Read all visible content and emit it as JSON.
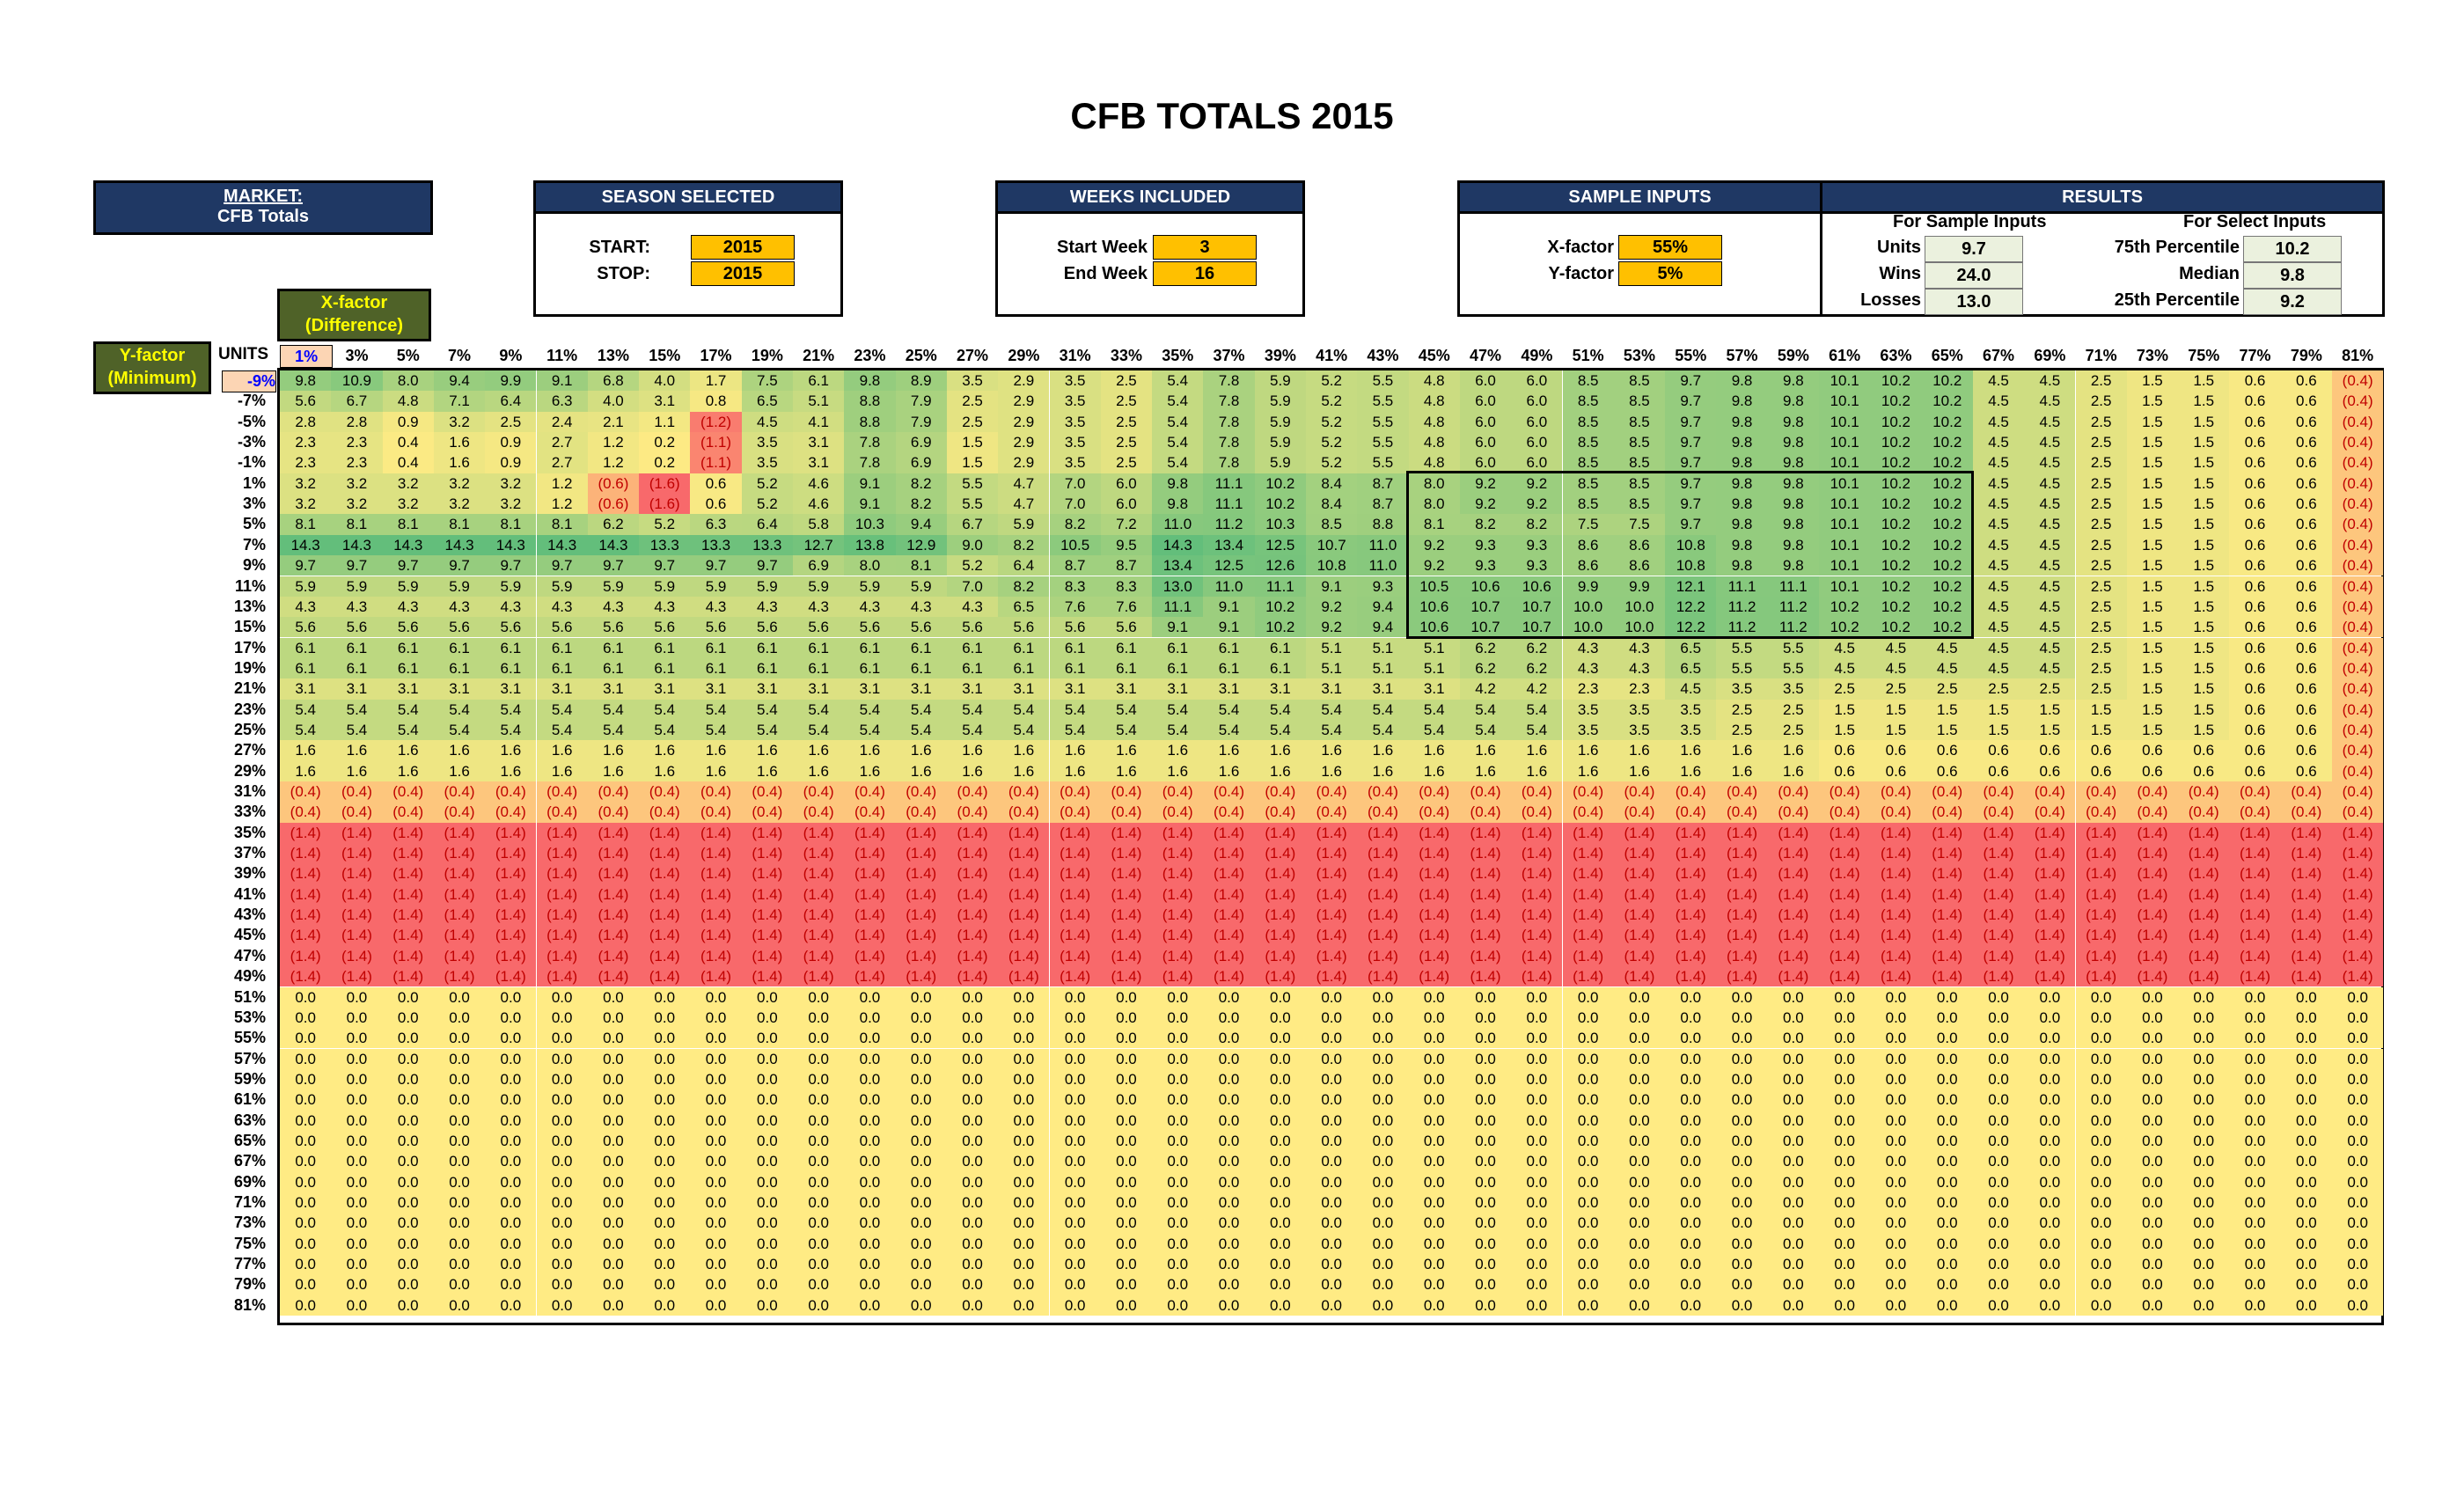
{
  "title": "CFB TOTALS 2015",
  "market": {
    "label": "MARKET:",
    "value": "CFB Totals"
  },
  "season": {
    "header": "SEASON SELECTED",
    "start_label": "START:",
    "start_value": "2015",
    "stop_label": "STOP:",
    "stop_value": "2015"
  },
  "weeks": {
    "header": "WEEKS INCLUDED",
    "start_label": "Start Week",
    "start_value": "3",
    "end_label": "End Week",
    "end_value": "16"
  },
  "sample": {
    "header": "SAMPLE INPUTS",
    "x_label": "X-factor",
    "x_value": "55%",
    "y_label": "Y-factor",
    "y_value": "5%"
  },
  "results": {
    "header": "RESULTS",
    "sample_header": "For Sample Inputs",
    "select_header": "For Select Inputs",
    "units_label": "Units",
    "units_value": "9.7",
    "wins_label": "Wins",
    "wins_value": "24.0",
    "losses_label": "Losses",
    "losses_value": "13.0",
    "p75_label": "75th Percentile",
    "p75_value": "10.2",
    "median_label": "Median",
    "median_value": "9.8",
    "p25_label": "25th Percentile",
    "p25_value": "9.2"
  },
  "xfactor_label": "X-factor",
  "xfactor_sub": "(Difference)",
  "yfactor_label": "Y-factor",
  "yfactor_sub": "(Minimum)",
  "units_label": "UNITS",
  "colors": {
    "navy": "#1f3864",
    "olive": "#4f6228",
    "gold": "#ffc000",
    "red": "#f8696b",
    "green": "#63be7b",
    "yellow": "#ffeb84"
  },
  "table": {
    "columns": [
      "1%",
      "3%",
      "5%",
      "7%",
      "9%",
      "11%",
      "13%",
      "15%",
      "17%",
      "19%",
      "21%",
      "23%",
      "25%",
      "27%",
      "29%",
      "31%",
      "33%",
      "35%",
      "37%",
      "39%",
      "41%",
      "43%",
      "45%",
      "47%",
      "49%",
      "51%",
      "53%",
      "55%",
      "57%",
      "59%",
      "61%",
      "63%",
      "65%",
      "67%",
      "69%",
      "71%",
      "73%",
      "75%",
      "77%",
      "79%",
      "81%"
    ],
    "rows": [
      {
        "label": "-9%",
        "values": [
          "9.8",
          "10.9",
          "8.0",
          "9.4",
          "9.9",
          "9.1",
          "6.8",
          "4.0",
          "1.7",
          "7.5",
          "6.1",
          "9.8",
          "8.9",
          "3.5",
          "2.9",
          "3.5",
          "2.5",
          "5.4",
          "7.8",
          "5.9",
          "5.2",
          "5.5",
          "4.8",
          "6.0",
          "6.0",
          "8.5",
          "8.5",
          "9.7",
          "9.8",
          "9.8",
          "10.1",
          "10.2",
          "10.2",
          "4.5",
          "4.5",
          "2.5",
          "1.5",
          "1.5",
          "0.6",
          "0.6",
          "(0.4)"
        ]
      },
      {
        "label": "-7%",
        "values": [
          "5.6",
          "6.7",
          "4.8",
          "7.1",
          "6.4",
          "6.3",
          "4.0",
          "3.1",
          "0.8",
          "6.5",
          "5.1",
          "8.8",
          "7.9",
          "2.5",
          "2.9",
          "3.5",
          "2.5",
          "5.4",
          "7.8",
          "5.9",
          "5.2",
          "5.5",
          "4.8",
          "6.0",
          "6.0",
          "8.5",
          "8.5",
          "9.7",
          "9.8",
          "9.8",
          "10.1",
          "10.2",
          "10.2",
          "4.5",
          "4.5",
          "2.5",
          "1.5",
          "1.5",
          "0.6",
          "0.6",
          "(0.4)"
        ]
      },
      {
        "label": "-5%",
        "values": [
          "2.8",
          "2.8",
          "0.9",
          "3.2",
          "2.5",
          "2.4",
          "2.1",
          "1.1",
          "(1.2)",
          "4.5",
          "4.1",
          "8.8",
          "7.9",
          "2.5",
          "2.9",
          "3.5",
          "2.5",
          "5.4",
          "7.8",
          "5.9",
          "5.2",
          "5.5",
          "4.8",
          "6.0",
          "6.0",
          "8.5",
          "8.5",
          "9.7",
          "9.8",
          "9.8",
          "10.1",
          "10.2",
          "10.2",
          "4.5",
          "4.5",
          "2.5",
          "1.5",
          "1.5",
          "0.6",
          "0.6",
          "(0.4)"
        ]
      },
      {
        "label": "-3%",
        "values": [
          "2.3",
          "2.3",
          "0.4",
          "1.6",
          "0.9",
          "2.7",
          "1.2",
          "0.2",
          "(1.1)",
          "3.5",
          "3.1",
          "7.8",
          "6.9",
          "1.5",
          "2.9",
          "3.5",
          "2.5",
          "5.4",
          "7.8",
          "5.9",
          "5.2",
          "5.5",
          "4.8",
          "6.0",
          "6.0",
          "8.5",
          "8.5",
          "9.7",
          "9.8",
          "9.8",
          "10.1",
          "10.2",
          "10.2",
          "4.5",
          "4.5",
          "2.5",
          "1.5",
          "1.5",
          "0.6",
          "0.6",
          "(0.4)"
        ]
      },
      {
        "label": "-1%",
        "values": [
          "2.3",
          "2.3",
          "0.4",
          "1.6",
          "0.9",
          "2.7",
          "1.2",
          "0.2",
          "(1.1)",
          "3.5",
          "3.1",
          "7.8",
          "6.9",
          "1.5",
          "2.9",
          "3.5",
          "2.5",
          "5.4",
          "7.8",
          "5.9",
          "5.2",
          "5.5",
          "4.8",
          "6.0",
          "6.0",
          "8.5",
          "8.5",
          "9.7",
          "9.8",
          "9.8",
          "10.1",
          "10.2",
          "10.2",
          "4.5",
          "4.5",
          "2.5",
          "1.5",
          "1.5",
          "0.6",
          "0.6",
          "(0.4)"
        ]
      },
      {
        "label": "1%",
        "values": [
          "3.2",
          "3.2",
          "3.2",
          "3.2",
          "3.2",
          "1.2",
          "(0.6)",
          "(1.6)",
          "0.6",
          "5.2",
          "4.6",
          "9.1",
          "8.2",
          "5.5",
          "4.7",
          "7.0",
          "6.0",
          "9.8",
          "11.1",
          "10.2",
          "8.4",
          "8.7",
          "8.0",
          "9.2",
          "9.2",
          "8.5",
          "8.5",
          "9.7",
          "9.8",
          "9.8",
          "10.1",
          "10.2",
          "10.2",
          "4.5",
          "4.5",
          "2.5",
          "1.5",
          "1.5",
          "0.6",
          "0.6",
          "(0.4)"
        ]
      },
      {
        "label": "3%",
        "values": [
          "3.2",
          "3.2",
          "3.2",
          "3.2",
          "3.2",
          "1.2",
          "(0.6)",
          "(1.6)",
          "0.6",
          "5.2",
          "4.6",
          "9.1",
          "8.2",
          "5.5",
          "4.7",
          "7.0",
          "6.0",
          "9.8",
          "11.1",
          "10.2",
          "8.4",
          "8.7",
          "8.0",
          "9.2",
          "9.2",
          "8.5",
          "8.5",
          "9.7",
          "9.8",
          "9.8",
          "10.1",
          "10.2",
          "10.2",
          "4.5",
          "4.5",
          "2.5",
          "1.5",
          "1.5",
          "0.6",
          "0.6",
          "(0.4)"
        ]
      },
      {
        "label": "5%",
        "values": [
          "8.1",
          "8.1",
          "8.1",
          "8.1",
          "8.1",
          "8.1",
          "6.2",
          "5.2",
          "6.3",
          "6.4",
          "5.8",
          "10.3",
          "9.4",
          "6.7",
          "5.9",
          "8.2",
          "7.2",
          "11.0",
          "11.2",
          "10.3",
          "8.5",
          "8.8",
          "8.1",
          "8.2",
          "8.2",
          "7.5",
          "7.5",
          "9.7",
          "9.8",
          "9.8",
          "10.1",
          "10.2",
          "10.2",
          "4.5",
          "4.5",
          "2.5",
          "1.5",
          "1.5",
          "0.6",
          "0.6",
          "(0.4)"
        ]
      },
      {
        "label": "7%",
        "values": [
          "14.3",
          "14.3",
          "14.3",
          "14.3",
          "14.3",
          "14.3",
          "14.3",
          "13.3",
          "13.3",
          "13.3",
          "12.7",
          "13.8",
          "12.9",
          "9.0",
          "8.2",
          "10.5",
          "9.5",
          "14.3",
          "13.4",
          "12.5",
          "10.7",
          "11.0",
          "9.2",
          "9.3",
          "9.3",
          "8.6",
          "8.6",
          "10.8",
          "9.8",
          "9.8",
          "10.1",
          "10.2",
          "10.2",
          "4.5",
          "4.5",
          "2.5",
          "1.5",
          "1.5",
          "0.6",
          "0.6",
          "(0.4)"
        ]
      },
      {
        "label": "9%",
        "values": [
          "9.7",
          "9.7",
          "9.7",
          "9.7",
          "9.7",
          "9.7",
          "9.7",
          "9.7",
          "9.7",
          "9.7",
          "6.9",
          "8.0",
          "8.1",
          "5.2",
          "6.4",
          "8.7",
          "8.7",
          "13.4",
          "12.5",
          "12.6",
          "10.8",
          "11.0",
          "9.2",
          "9.3",
          "9.3",
          "8.6",
          "8.6",
          "10.8",
          "9.8",
          "9.8",
          "10.1",
          "10.2",
          "10.2",
          "4.5",
          "4.5",
          "2.5",
          "1.5",
          "1.5",
          "0.6",
          "0.6",
          "(0.4)"
        ]
      },
      {
        "label": "11%",
        "values": [
          "5.9",
          "5.9",
          "5.9",
          "5.9",
          "5.9",
          "5.9",
          "5.9",
          "5.9",
          "5.9",
          "5.9",
          "5.9",
          "5.9",
          "5.9",
          "7.0",
          "8.2",
          "8.3",
          "8.3",
          "13.0",
          "11.0",
          "11.1",
          "9.1",
          "9.3",
          "10.5",
          "10.6",
          "10.6",
          "9.9",
          "9.9",
          "12.1",
          "11.1",
          "11.1",
          "10.1",
          "10.2",
          "10.2",
          "4.5",
          "4.5",
          "2.5",
          "1.5",
          "1.5",
          "0.6",
          "0.6",
          "(0.4)"
        ]
      },
      {
        "label": "13%",
        "values": [
          "4.3",
          "4.3",
          "4.3",
          "4.3",
          "4.3",
          "4.3",
          "4.3",
          "4.3",
          "4.3",
          "4.3",
          "4.3",
          "4.3",
          "4.3",
          "4.3",
          "6.5",
          "7.6",
          "7.6",
          "11.1",
          "9.1",
          "10.2",
          "9.2",
          "9.4",
          "10.6",
          "10.7",
          "10.7",
          "10.0",
          "10.0",
          "12.2",
          "11.2",
          "11.2",
          "10.2",
          "10.2",
          "10.2",
          "4.5",
          "4.5",
          "2.5",
          "1.5",
          "1.5",
          "0.6",
          "0.6",
          "(0.4)"
        ]
      },
      {
        "label": "15%",
        "values": [
          "5.6",
          "5.6",
          "5.6",
          "5.6",
          "5.6",
          "5.6",
          "5.6",
          "5.6",
          "5.6",
          "5.6",
          "5.6",
          "5.6",
          "5.6",
          "5.6",
          "5.6",
          "5.6",
          "5.6",
          "9.1",
          "9.1",
          "10.2",
          "9.2",
          "9.4",
          "10.6",
          "10.7",
          "10.7",
          "10.0",
          "10.0",
          "12.2",
          "11.2",
          "11.2",
          "10.2",
          "10.2",
          "10.2",
          "4.5",
          "4.5",
          "2.5",
          "1.5",
          "1.5",
          "0.6",
          "0.6",
          "(0.4)"
        ]
      },
      {
        "label": "17%",
        "values": [
          "6.1",
          "6.1",
          "6.1",
          "6.1",
          "6.1",
          "6.1",
          "6.1",
          "6.1",
          "6.1",
          "6.1",
          "6.1",
          "6.1",
          "6.1",
          "6.1",
          "6.1",
          "6.1",
          "6.1",
          "6.1",
          "6.1",
          "6.1",
          "5.1",
          "5.1",
          "5.1",
          "6.2",
          "6.2",
          "4.3",
          "4.3",
          "6.5",
          "5.5",
          "5.5",
          "4.5",
          "4.5",
          "4.5",
          "4.5",
          "4.5",
          "2.5",
          "1.5",
          "1.5",
          "0.6",
          "0.6",
          "(0.4)"
        ]
      },
      {
        "label": "19%",
        "values": [
          "6.1",
          "6.1",
          "6.1",
          "6.1",
          "6.1",
          "6.1",
          "6.1",
          "6.1",
          "6.1",
          "6.1",
          "6.1",
          "6.1",
          "6.1",
          "6.1",
          "6.1",
          "6.1",
          "6.1",
          "6.1",
          "6.1",
          "6.1",
          "5.1",
          "5.1",
          "5.1",
          "6.2",
          "6.2",
          "4.3",
          "4.3",
          "6.5",
          "5.5",
          "5.5",
          "4.5",
          "4.5",
          "4.5",
          "4.5",
          "4.5",
          "2.5",
          "1.5",
          "1.5",
          "0.6",
          "0.6",
          "(0.4)"
        ]
      },
      {
        "label": "21%",
        "values": [
          "3.1",
          "3.1",
          "3.1",
          "3.1",
          "3.1",
          "3.1",
          "3.1",
          "3.1",
          "3.1",
          "3.1",
          "3.1",
          "3.1",
          "3.1",
          "3.1",
          "3.1",
          "3.1",
          "3.1",
          "3.1",
          "3.1",
          "3.1",
          "3.1",
          "3.1",
          "3.1",
          "4.2",
          "4.2",
          "2.3",
          "2.3",
          "4.5",
          "3.5",
          "3.5",
          "2.5",
          "2.5",
          "2.5",
          "2.5",
          "2.5",
          "2.5",
          "1.5",
          "1.5",
          "0.6",
          "0.6",
          "(0.4)"
        ]
      },
      {
        "label": "23%",
        "values": [
          "5.4",
          "5.4",
          "5.4",
          "5.4",
          "5.4",
          "5.4",
          "5.4",
          "5.4",
          "5.4",
          "5.4",
          "5.4",
          "5.4",
          "5.4",
          "5.4",
          "5.4",
          "5.4",
          "5.4",
          "5.4",
          "5.4",
          "5.4",
          "5.4",
          "5.4",
          "5.4",
          "5.4",
          "5.4",
          "3.5",
          "3.5",
          "3.5",
          "2.5",
          "2.5",
          "1.5",
          "1.5",
          "1.5",
          "1.5",
          "1.5",
          "1.5",
          "1.5",
          "1.5",
          "0.6",
          "0.6",
          "(0.4)"
        ]
      },
      {
        "label": "25%",
        "values": [
          "5.4",
          "5.4",
          "5.4",
          "5.4",
          "5.4",
          "5.4",
          "5.4",
          "5.4",
          "5.4",
          "5.4",
          "5.4",
          "5.4",
          "5.4",
          "5.4",
          "5.4",
          "5.4",
          "5.4",
          "5.4",
          "5.4",
          "5.4",
          "5.4",
          "5.4",
          "5.4",
          "5.4",
          "5.4",
          "3.5",
          "3.5",
          "3.5",
          "2.5",
          "2.5",
          "1.5",
          "1.5",
          "1.5",
          "1.5",
          "1.5",
          "1.5",
          "1.5",
          "1.5",
          "0.6",
          "0.6",
          "(0.4)"
        ]
      },
      {
        "label": "27%",
        "values": [
          "1.6",
          "1.6",
          "1.6",
          "1.6",
          "1.6",
          "1.6",
          "1.6",
          "1.6",
          "1.6",
          "1.6",
          "1.6",
          "1.6",
          "1.6",
          "1.6",
          "1.6",
          "1.6",
          "1.6",
          "1.6",
          "1.6",
          "1.6",
          "1.6",
          "1.6",
          "1.6",
          "1.6",
          "1.6",
          "1.6",
          "1.6",
          "1.6",
          "1.6",
          "1.6",
          "0.6",
          "0.6",
          "0.6",
          "0.6",
          "0.6",
          "0.6",
          "0.6",
          "0.6",
          "0.6",
          "0.6",
          "(0.4)"
        ]
      },
      {
        "label": "29%",
        "values": [
          "1.6",
          "1.6",
          "1.6",
          "1.6",
          "1.6",
          "1.6",
          "1.6",
          "1.6",
          "1.6",
          "1.6",
          "1.6",
          "1.6",
          "1.6",
          "1.6",
          "1.6",
          "1.6",
          "1.6",
          "1.6",
          "1.6",
          "1.6",
          "1.6",
          "1.6",
          "1.6",
          "1.6",
          "1.6",
          "1.6",
          "1.6",
          "1.6",
          "1.6",
          "1.6",
          "0.6",
          "0.6",
          "0.6",
          "0.6",
          "0.6",
          "0.6",
          "0.6",
          "0.6",
          "0.6",
          "0.6",
          "(0.4)"
        ]
      },
      {
        "label": "31%",
        "fill": "(0.4)"
      },
      {
        "label": "33%",
        "fill": "(0.4)"
      },
      {
        "label": "35%",
        "fill": "(1.4)"
      },
      {
        "label": "37%",
        "fill": "(1.4)"
      },
      {
        "label": "39%",
        "fill": "(1.4)"
      },
      {
        "label": "41%",
        "fill": "(1.4)"
      },
      {
        "label": "43%",
        "fill": "(1.4)"
      },
      {
        "label": "45%",
        "fill": "(1.4)"
      },
      {
        "label": "47%",
        "fill": "(1.4)"
      },
      {
        "label": "49%",
        "fill": "(1.4)"
      },
      {
        "label": "51%",
        "fill": "0.0"
      },
      {
        "label": "53%",
        "fill": "0.0"
      },
      {
        "label": "55%",
        "fill": "0.0"
      },
      {
        "label": "57%",
        "fill": "0.0"
      },
      {
        "label": "59%",
        "fill": "0.0"
      },
      {
        "label": "61%",
        "fill": "0.0"
      },
      {
        "label": "63%",
        "fill": "0.0"
      },
      {
        "label": "65%",
        "fill": "0.0"
      },
      {
        "label": "67%",
        "fill": "0.0"
      },
      {
        "label": "69%",
        "fill": "0.0"
      },
      {
        "label": "71%",
        "fill": "0.0"
      },
      {
        "label": "73%",
        "fill": "0.0"
      },
      {
        "label": "75%",
        "fill": "0.0"
      },
      {
        "label": "77%",
        "fill": "0.0"
      },
      {
        "label": "79%",
        "fill": "0.0"
      },
      {
        "label": "81%",
        "fill": "0.0"
      }
    ]
  }
}
